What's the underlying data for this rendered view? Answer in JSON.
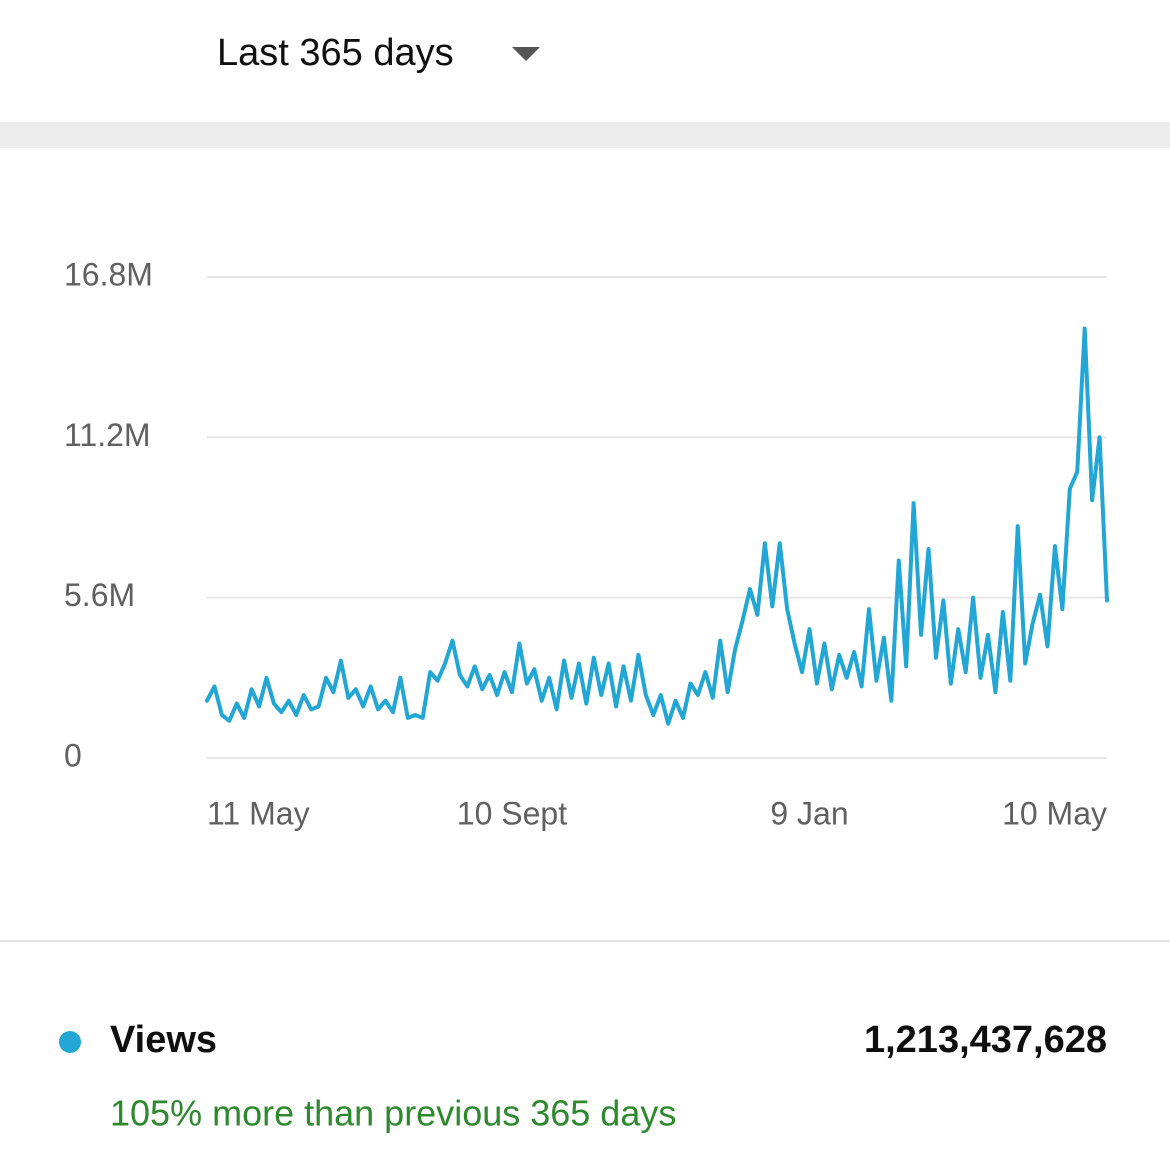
{
  "header": {
    "period": "Last 365 days"
  },
  "chart_data": {
    "type": "line",
    "categories": [
      "11 May",
      null,
      null,
      null,
      null,
      null,
      null,
      null,
      null,
      null,
      null,
      null,
      null,
      null,
      null,
      null,
      null,
      null,
      null,
      null,
      null,
      null,
      null,
      null,
      null,
      null,
      null,
      null,
      null,
      null,
      null,
      null,
      null,
      null,
      null,
      null,
      null,
      null,
      null,
      null,
      null,
      "10 Sept",
      null,
      null,
      null,
      null,
      null,
      null,
      null,
      null,
      null,
      null,
      null,
      null,
      null,
      null,
      null,
      null,
      null,
      null,
      null,
      null,
      null,
      null,
      null,
      null,
      null,
      null,
      null,
      null,
      null,
      null,
      null,
      null,
      null,
      null,
      null,
      null,
      null,
      null,
      null,
      "9 Jan",
      null,
      null,
      null,
      null,
      null,
      null,
      null,
      null,
      null,
      null,
      null,
      null,
      null,
      null,
      null,
      null,
      null,
      null,
      null,
      null,
      null,
      null,
      null,
      null,
      null,
      null,
      null,
      null,
      null,
      null,
      null,
      null,
      null,
      null,
      null,
      null,
      null,
      null,
      null,
      "10 May"
    ],
    "series": [
      {
        "name": "Views",
        "color": "#22a6d5",
        "values": [
          2000000,
          2500000,
          1500000,
          1300000,
          1900000,
          1400000,
          2400000,
          1800000,
          2800000,
          1900000,
          1600000,
          2000000,
          1500000,
          2200000,
          1700000,
          1800000,
          2800000,
          2300000,
          3400000,
          2100000,
          2400000,
          1800000,
          2500000,
          1700000,
          2000000,
          1600000,
          2800000,
          1400000,
          1500000,
          1400000,
          3000000,
          2700000,
          3300000,
          4100000,
          2900000,
          2500000,
          3200000,
          2400000,
          2900000,
          2200000,
          3000000,
          2300000,
          4000000,
          2600000,
          3100000,
          2000000,
          2800000,
          1700000,
          3400000,
          2100000,
          3300000,
          1900000,
          3500000,
          2200000,
          3300000,
          1800000,
          3200000,
          2000000,
          3600000,
          2200000,
          1500000,
          2200000,
          1200000,
          2000000,
          1400000,
          2600000,
          2200000,
          3000000,
          2100000,
          4100000,
          2300000,
          3800000,
          4800000,
          5900000,
          5000000,
          7500000,
          5300000,
          7500000,
          5200000,
          4000000,
          3000000,
          4500000,
          2600000,
          4000000,
          2400000,
          3600000,
          2800000,
          3700000,
          2500000,
          5200000,
          2700000,
          4200000,
          2000000,
          6900000,
          3200000,
          8900000,
          4300000,
          7300000,
          3500000,
          5500000,
          2600000,
          4500000,
          3000000,
          5600000,
          2800000,
          4300000,
          2300000,
          5100000,
          2700000,
          8100000,
          3300000,
          4700000,
          5700000,
          3900000,
          7400000,
          5200000,
          9400000,
          10000000,
          15000000,
          9000000,
          11200000,
          5500000
        ]
      }
    ],
    "ylim": [
      0,
      16800000
    ],
    "yticks": [
      0,
      {
        "value": 5600000,
        "label": "5.6M"
      },
      {
        "value": 11200000,
        "label": "11.2M"
      },
      {
        "value": 16800000,
        "label": "16.8M"
      }
    ],
    "grid": true
  },
  "summary": {
    "total": "1,213,437,628",
    "comparison": "105% more than previous 365 days"
  }
}
